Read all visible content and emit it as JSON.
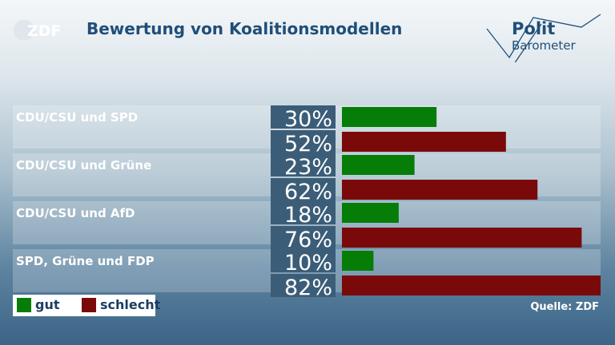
{
  "header": {
    "logo_text": "ZDF",
    "title": "Bewertung von Koalitionsmodellen",
    "brand_line1": "Polit",
    "brand_line2": "Barometer"
  },
  "colors": {
    "gut": "#067d06",
    "schlecht": "#7a0a0a",
    "label_box": "#3b5d78",
    "row_band": "#ffffff"
  },
  "chart_data": {
    "type": "bar",
    "orientation": "horizontal",
    "categories": [
      "CDU/CSU und SPD",
      "CDU/CSU und Grüne",
      "CDU/CSU und AfD",
      "SPD, Grüne und FDP"
    ],
    "series": [
      {
        "name": "gut",
        "values": [
          30,
          23,
          18,
          10
        ]
      },
      {
        "name": "schlecht",
        "values": [
          52,
          62,
          76,
          82
        ]
      }
    ],
    "value_suffix": "%",
    "xlim": [
      0,
      82
    ],
    "legend": "bottom-left"
  },
  "legend": {
    "gut_label": "gut",
    "schlecht_label": "schlecht"
  },
  "source": "Quelle: ZDF"
}
